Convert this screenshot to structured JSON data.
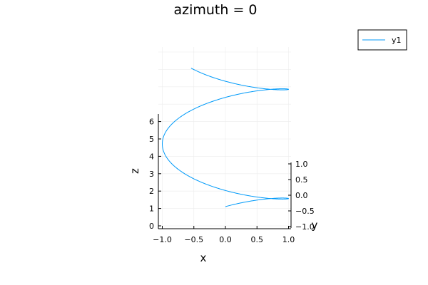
{
  "chart_data": {
    "type": "line",
    "title": "azimuth = 0",
    "xlabel": "x",
    "ylabel": "y",
    "zlabel": "z",
    "legend_position": "top-right",
    "grid": true,
    "x_ticks": [
      "−1.0",
      "−0.5",
      "0.0",
      "0.5",
      "1.0"
    ],
    "y_ticks": [
      "−1.0",
      "−0.5",
      "0.0",
      "0.5",
      "1.0"
    ],
    "z_ticks": [
      "0",
      "1",
      "2",
      "3",
      "4",
      "5",
      "6"
    ],
    "xlim": [
      -1.0,
      1.0
    ],
    "ylim": [
      -1.0,
      1.0
    ],
    "zlim": [
      0,
      10
    ],
    "series": [
      {
        "name": "y1",
        "color": "#009af9",
        "x_fn": "sin(t)",
        "y_fn": "cos(t)",
        "z_fn": "t",
        "t_range": [
          0,
          10
        ]
      }
    ]
  }
}
